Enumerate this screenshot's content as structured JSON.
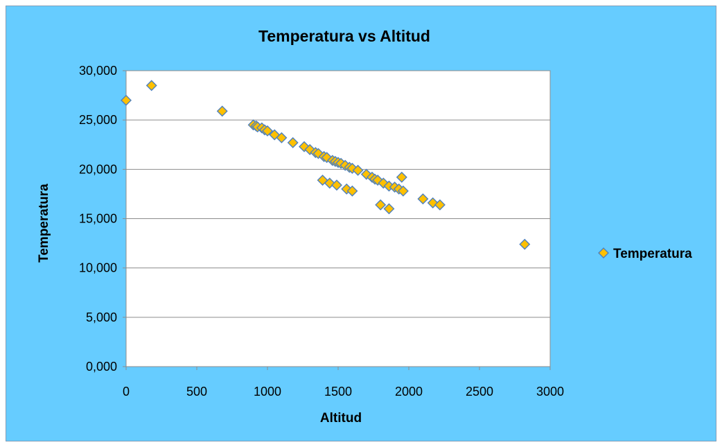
{
  "chart_data": {
    "type": "scatter",
    "title": "Temperatura vs  Altitud",
    "xlabel": "Altitud",
    "ylabel": "Temperatura",
    "xlim": [
      0,
      3000
    ],
    "ylim": [
      0,
      30
    ],
    "x_ticks": [
      "0",
      "500",
      "1000",
      "1500",
      "2000",
      "2500",
      "3000"
    ],
    "y_ticks": [
      "0,000",
      "5,000",
      "10,000",
      "15,000",
      "20,000",
      "25,000",
      "30,000"
    ],
    "grid": "horizontal major gridlines",
    "legend_position": "right",
    "marker": "diamond",
    "colors": {
      "background": "#66ccff",
      "plot_area": "#ffffff",
      "marker_fill": "#ffc000",
      "marker_stroke": "#4f81bd"
    },
    "series": [
      {
        "name": "Temperatura",
        "points": [
          [
            0,
            27.0
          ],
          [
            180,
            28.5
          ],
          [
            680,
            25.9
          ],
          [
            900,
            24.5
          ],
          [
            920,
            24.4
          ],
          [
            930,
            24.3
          ],
          [
            960,
            24.2
          ],
          [
            980,
            24.0
          ],
          [
            1000,
            23.9
          ],
          [
            1050,
            23.5
          ],
          [
            1100,
            23.2
          ],
          [
            1180,
            22.7
          ],
          [
            1260,
            22.3
          ],
          [
            1300,
            22.0
          ],
          [
            1340,
            21.7
          ],
          [
            1360,
            21.6
          ],
          [
            1400,
            21.3
          ],
          [
            1420,
            21.2
          ],
          [
            1460,
            20.9
          ],
          [
            1480,
            20.8
          ],
          [
            1500,
            20.7
          ],
          [
            1520,
            20.6
          ],
          [
            1550,
            20.4
          ],
          [
            1580,
            20.2
          ],
          [
            1600,
            20.1
          ],
          [
            1640,
            19.9
          ],
          [
            1700,
            19.5
          ],
          [
            1740,
            19.2
          ],
          [
            1760,
            19.0
          ],
          [
            1780,
            18.9
          ],
          [
            1820,
            18.6
          ],
          [
            1860,
            18.3
          ],
          [
            1900,
            18.2
          ],
          [
            1930,
            18.0
          ],
          [
            1960,
            17.8
          ],
          [
            1950,
            19.2
          ],
          [
            1390,
            18.9
          ],
          [
            1440,
            18.6
          ],
          [
            1490,
            18.4
          ],
          [
            1560,
            18.0
          ],
          [
            1600,
            17.8
          ],
          [
            1800,
            16.4
          ],
          [
            1860,
            16.0
          ],
          [
            2100,
            17.0
          ],
          [
            2170,
            16.6
          ],
          [
            2220,
            16.4
          ],
          [
            2820,
            12.4
          ]
        ]
      }
    ]
  }
}
